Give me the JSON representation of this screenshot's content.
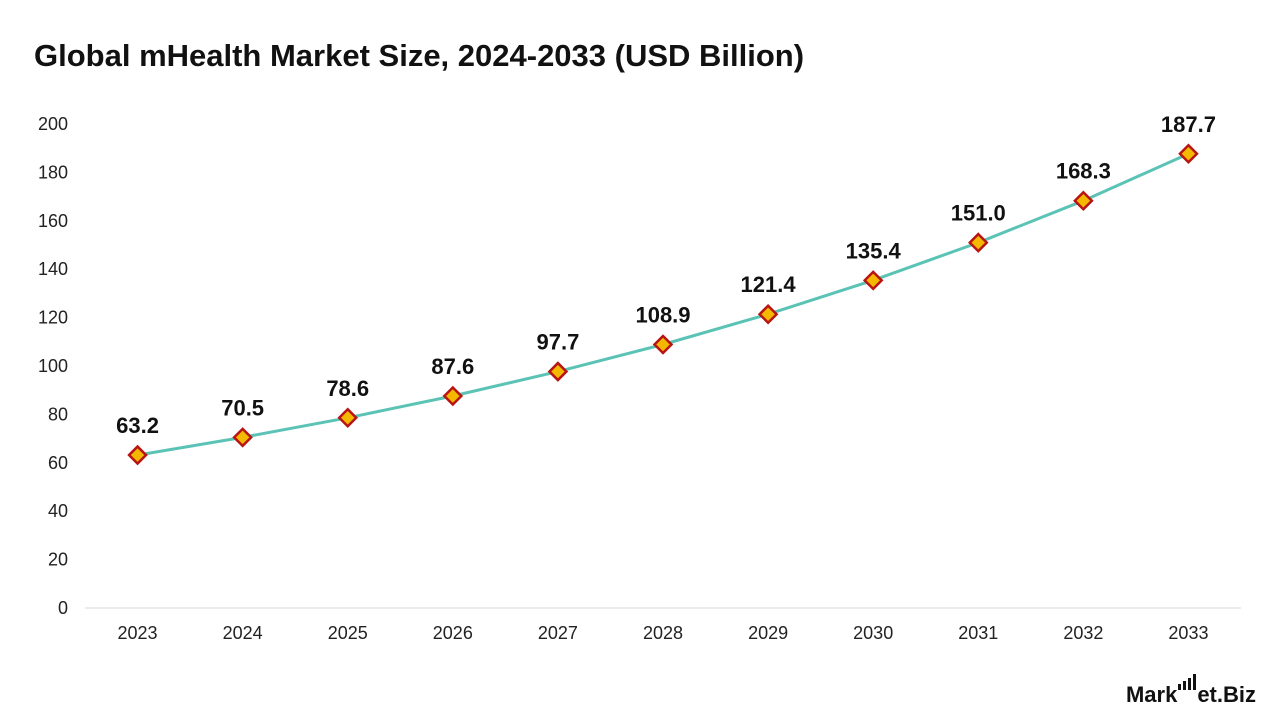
{
  "chart_data": {
    "type": "line",
    "title": "Global mHealth Market Size, 2024-2033 (USD Billion)",
    "xlabel": "",
    "ylabel": "",
    "categories": [
      "2023",
      "2024",
      "2025",
      "2026",
      "2027",
      "2028",
      "2029",
      "2030",
      "2031",
      "2032",
      "2033"
    ],
    "values": [
      63.2,
      70.5,
      78.6,
      87.6,
      97.7,
      108.9,
      121.4,
      135.4,
      151.0,
      168.3,
      187.7
    ],
    "value_labels": [
      "63.2",
      "70.5",
      "78.6",
      "87.6",
      "97.7",
      "108.9",
      "121.4",
      "135.4",
      "151.0",
      "168.3",
      "187.7"
    ],
    "ylim": [
      0,
      200
    ],
    "yticks": [
      0,
      20,
      40,
      60,
      80,
      100,
      120,
      140,
      160,
      180,
      200
    ],
    "grid": false,
    "legend": "none",
    "colors": {
      "line": "#5bc3b5",
      "marker_fill": "#f5b800",
      "marker_stroke": "#b81414",
      "axis": "#d9d9d9"
    }
  },
  "brand": {
    "left": "Mark",
    "right": "et.Biz"
  }
}
